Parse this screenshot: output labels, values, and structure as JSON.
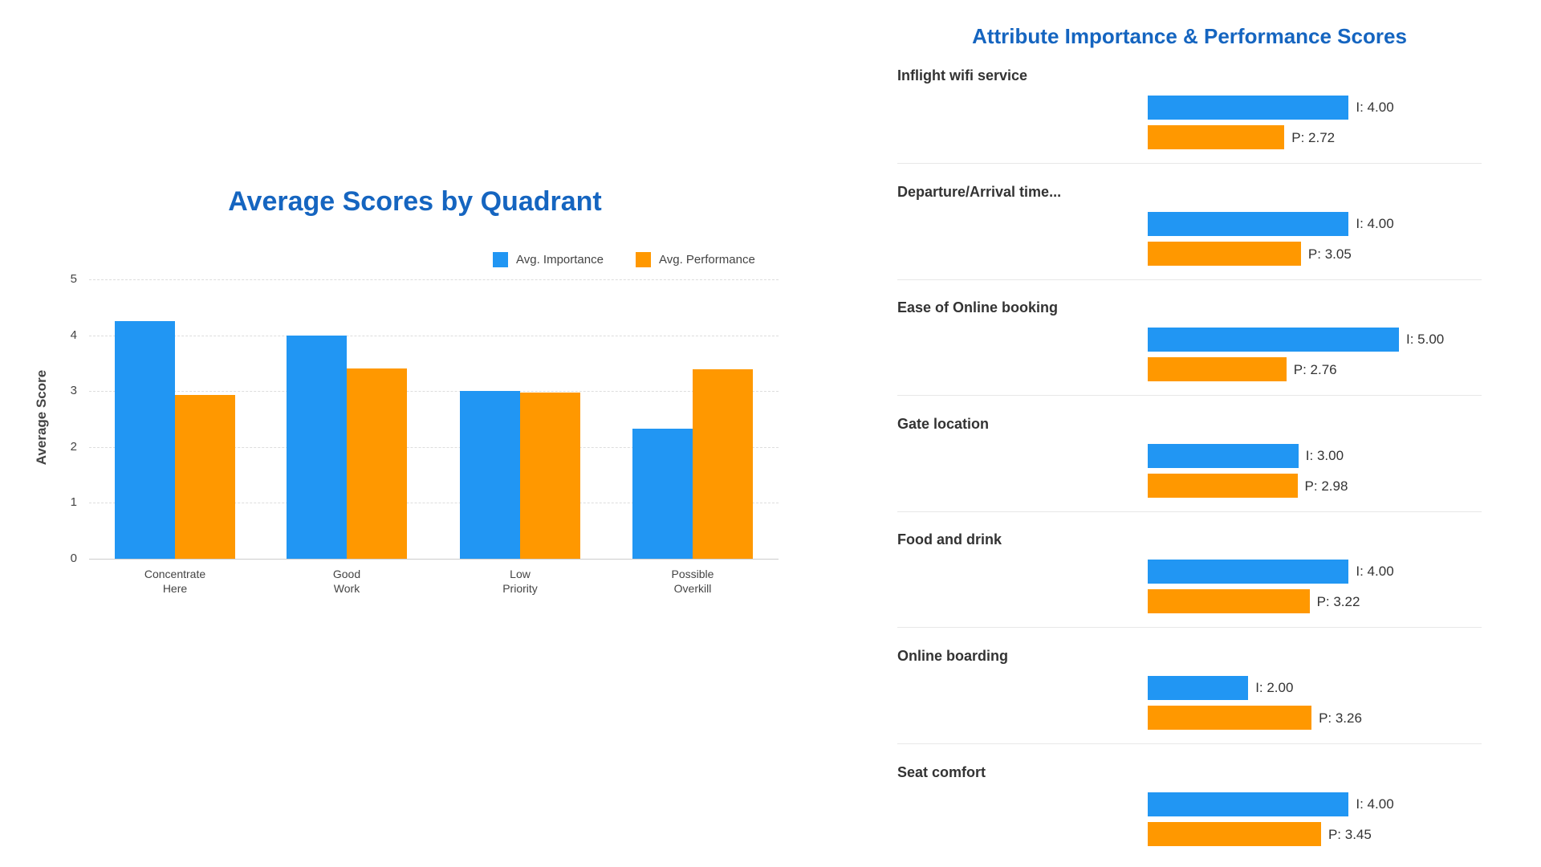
{
  "colors": {
    "importance": "#2196f3",
    "performance": "#ff9800",
    "title": "#1565c0"
  },
  "chart_data": [
    {
      "type": "bar",
      "title": "Average Scores by Quadrant",
      "xlabel": "",
      "ylabel": "Average Score",
      "ylim": [
        0,
        5
      ],
      "yticks": [
        "0",
        "1",
        "2",
        "3",
        "4",
        "5"
      ],
      "grid": true,
      "legend_position": "top-right",
      "categories": [
        [
          "Concentrate",
          "Here"
        ],
        [
          "Good",
          "Work"
        ],
        [
          "Low",
          "Priority"
        ],
        [
          "Possible",
          "Overkill"
        ]
      ],
      "series": [
        {
          "name": "Avg. Importance",
          "values": [
            4.25,
            4.0,
            3.0,
            2.33
          ]
        },
        {
          "name": "Avg. Performance",
          "values": [
            2.93,
            3.4,
            2.97,
            3.39
          ]
        }
      ]
    },
    {
      "type": "bar",
      "orientation": "horizontal",
      "title": "Attribute Importance & Performance Scores",
      "xlim": [
        0,
        5
      ],
      "items": [
        {
          "label": "Inflight wifi service",
          "importance": 4.0,
          "performance": 2.72,
          "i_text": "I: 4.00",
          "p_text": "P: 2.72"
        },
        {
          "label": "Departure/Arrival time...",
          "importance": 4.0,
          "performance": 3.05,
          "i_text": "I: 4.00",
          "p_text": "P: 3.05"
        },
        {
          "label": "Ease of Online booking",
          "importance": 5.0,
          "performance": 2.76,
          "i_text": "I: 5.00",
          "p_text": "P: 2.76"
        },
        {
          "label": "Gate location",
          "importance": 3.0,
          "performance": 2.98,
          "i_text": "I: 3.00",
          "p_text": "P: 2.98"
        },
        {
          "label": "Food and drink",
          "importance": 4.0,
          "performance": 3.22,
          "i_text": "I: 4.00",
          "p_text": "P: 3.22"
        },
        {
          "label": "Online boarding",
          "importance": 2.0,
          "performance": 3.26,
          "i_text": "I: 2.00",
          "p_text": "P: 3.26"
        },
        {
          "label": "Seat comfort",
          "importance": 4.0,
          "performance": 3.45,
          "i_text": "I: 4.00",
          "p_text": "P: 3.45"
        }
      ]
    }
  ]
}
